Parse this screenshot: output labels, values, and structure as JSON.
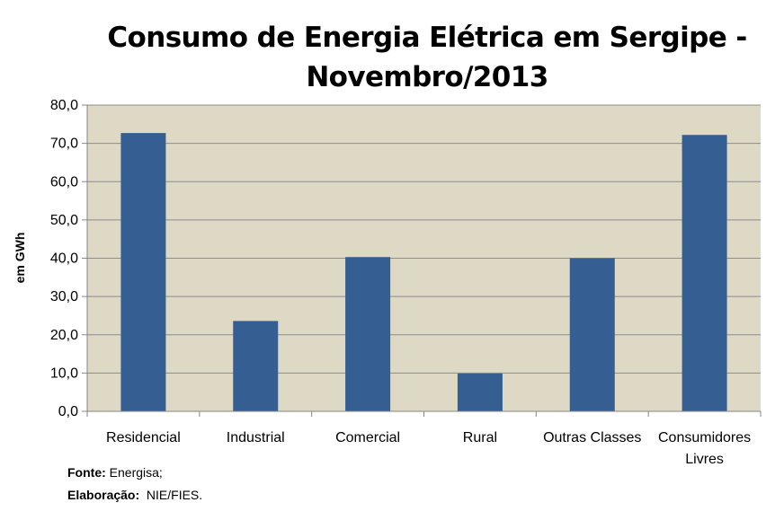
{
  "chart_data": {
    "type": "bar",
    "title_line1": "Consumo de Energia Elétrica em Sergipe -",
    "title_line2": "Novembro/2013",
    "xlabel": "",
    "ylabel": "em GWh",
    "ylim": [
      0,
      80
    ],
    "yticks": [
      0,
      10,
      20,
      30,
      40,
      50,
      60,
      70,
      80
    ],
    "ytick_labels": [
      "0,0",
      "10,0",
      "20,0",
      "30,0",
      "40,0",
      "50,0",
      "60,0",
      "70,0",
      "80,0"
    ],
    "grid": true,
    "categories": [
      [
        "Residencial"
      ],
      [
        "Industrial"
      ],
      [
        "Comercial"
      ],
      [
        "Rural"
      ],
      [
        "Outras Classes"
      ],
      [
        "Consumidores",
        "Livres"
      ]
    ],
    "values": [
      72.7,
      23.6,
      40.3,
      9.9,
      40.0,
      72.2
    ],
    "colors": {
      "bar": "#355f93",
      "plot_bg": "#ddd9c4",
      "grid": "#8c8c8c",
      "axis": "#868686"
    }
  },
  "footer": {
    "source_label": "Fonte:",
    "source_value": "Energisa;",
    "elab_label": "Elaboração:",
    "elab_value": "NIE/FIES."
  }
}
